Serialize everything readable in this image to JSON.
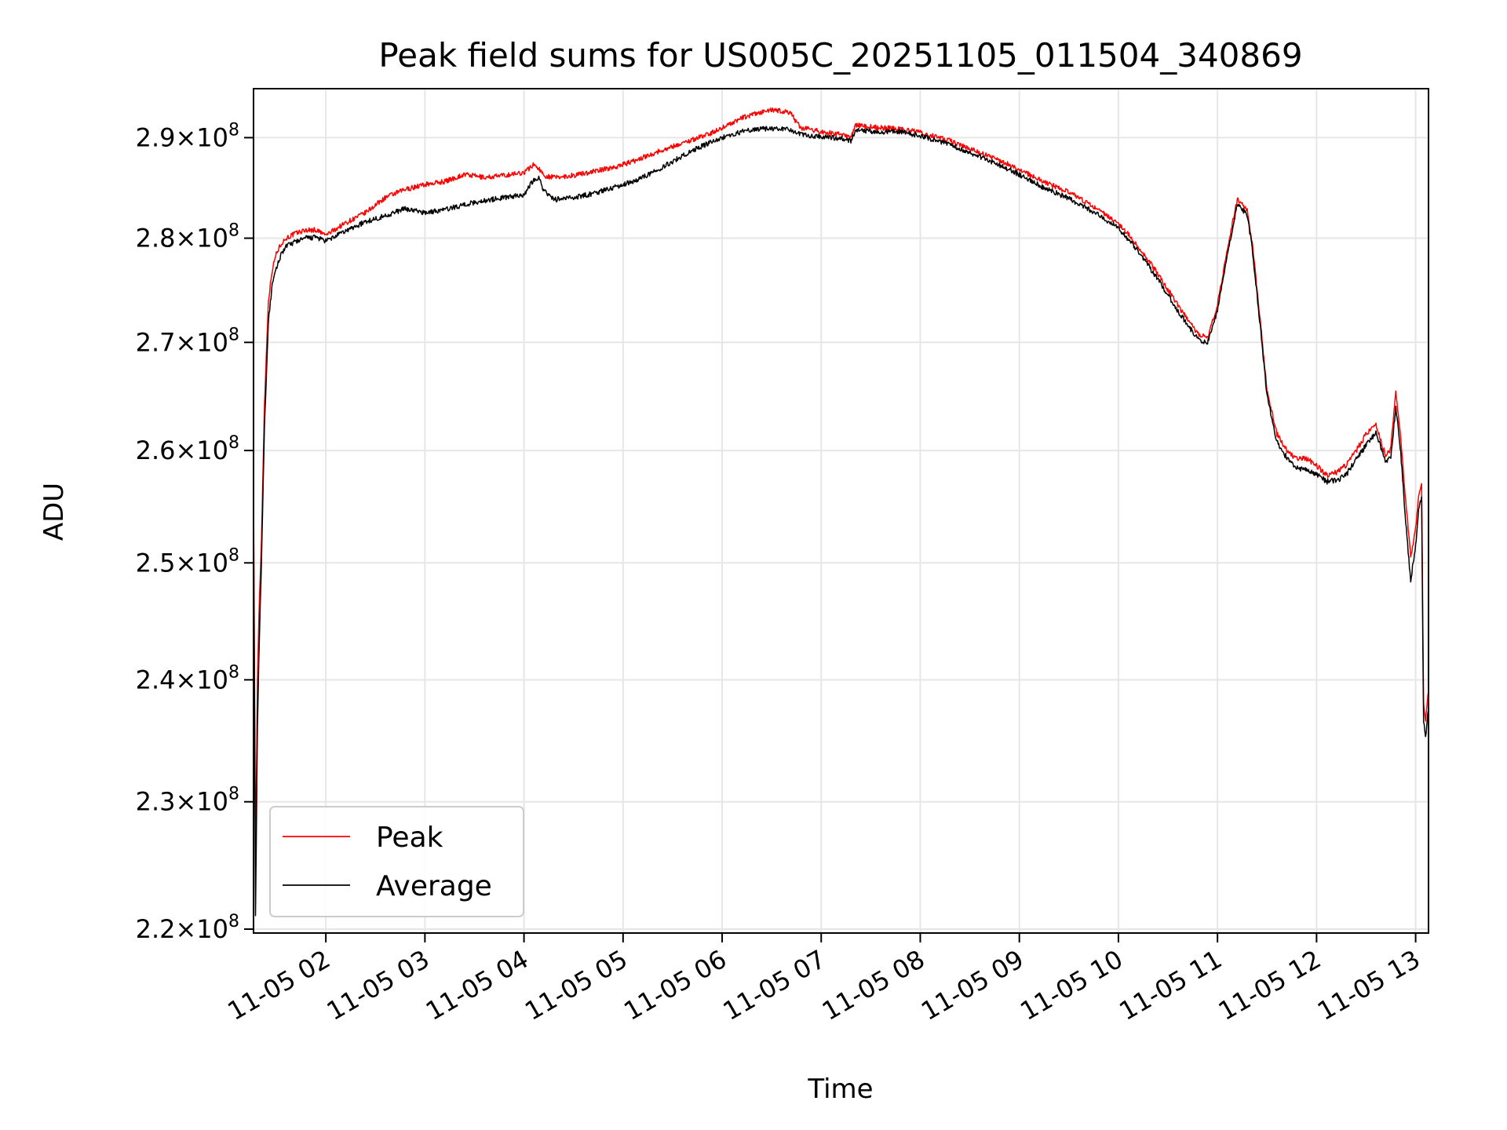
{
  "chart_data": {
    "type": "line",
    "title": "Peak field sums for US005C_20251105_011504_340869",
    "xlabel": "Time",
    "ylabel": "ADU",
    "x_unit": "hours since 11-05 00:00",
    "xlim": [
      1.27,
      13.13
    ],
    "ylim": [
      219700000,
      295000000
    ],
    "y_scale": "log",
    "grid": true,
    "legend_position": "lower-left",
    "x_ticks": [
      {
        "value": 2,
        "label": "11-05 02"
      },
      {
        "value": 3,
        "label": "11-05 03"
      },
      {
        "value": 4,
        "label": "11-05 04"
      },
      {
        "value": 5,
        "label": "11-05 05"
      },
      {
        "value": 6,
        "label": "11-05 06"
      },
      {
        "value": 7,
        "label": "11-05 07"
      },
      {
        "value": 8,
        "label": "11-05 08"
      },
      {
        "value": 9,
        "label": "11-05 09"
      },
      {
        "value": 10,
        "label": "11-05 10"
      },
      {
        "value": 11,
        "label": "11-05 11"
      },
      {
        "value": 12,
        "label": "11-05 12"
      },
      {
        "value": 13,
        "label": "11-05 13"
      }
    ],
    "y_ticks": [
      {
        "value": 220000000,
        "mantissa": "2.2",
        "base": "10",
        "exp": "8"
      },
      {
        "value": 230000000,
        "mantissa": "2.3",
        "base": "10",
        "exp": "8"
      },
      {
        "value": 240000000,
        "mantissa": "2.4",
        "base": "10",
        "exp": "8"
      },
      {
        "value": 250000000,
        "mantissa": "2.5",
        "base": "10",
        "exp": "8"
      },
      {
        "value": 260000000,
        "mantissa": "2.6",
        "base": "10",
        "exp": "8"
      },
      {
        "value": 270000000,
        "mantissa": "2.7",
        "base": "10",
        "exp": "8"
      },
      {
        "value": 280000000,
        "mantissa": "2.8",
        "base": "10",
        "exp": "8"
      },
      {
        "value": 290000000,
        "mantissa": "2.9",
        "base": "10",
        "exp": "8"
      }
    ],
    "series": [
      {
        "name": "Peak",
        "color": "#ff0000",
        "x": [
          1.27,
          1.29,
          1.31,
          1.33,
          1.35,
          1.38,
          1.42,
          1.46,
          1.5,
          1.55,
          1.6,
          1.7,
          1.8,
          1.9,
          2.0,
          2.2,
          2.4,
          2.6,
          2.8,
          3.0,
          3.2,
          3.4,
          3.6,
          3.8,
          4.0,
          4.1,
          4.15,
          4.2,
          4.3,
          4.5,
          4.7,
          4.9,
          5.1,
          5.3,
          5.5,
          5.7,
          5.9,
          6.0,
          6.1,
          6.2,
          6.3,
          6.4,
          6.5,
          6.6,
          6.7,
          6.75,
          6.8,
          7.0,
          7.2,
          7.3,
          7.35,
          7.4,
          7.6,
          7.8,
          8.0,
          8.3,
          8.6,
          8.9,
          9.2,
          9.5,
          9.8,
          10.0,
          10.2,
          10.4,
          10.6,
          10.8,
          10.9,
          11.0,
          11.1,
          11.2,
          11.3,
          11.35,
          11.4,
          11.5,
          11.6,
          11.7,
          11.8,
          11.9,
          12.0,
          12.1,
          12.2,
          12.3,
          12.4,
          12.5,
          12.6,
          12.65,
          12.7,
          12.75,
          12.8,
          12.85,
          12.9,
          12.95,
          13.0,
          13.03,
          13.06,
          13.08,
          13.1,
          13.13
        ],
        "y": [
          257000000,
          225000000,
          240000000,
          247000000,
          252000000,
          264000000,
          274000000,
          277000000,
          278500000,
          279500000,
          280000000,
          280500000,
          280800000,
          280800000,
          280300000,
          281500000,
          282500000,
          284000000,
          284800000,
          285300000,
          285600000,
          286300000,
          286000000,
          286200000,
          286500000,
          287300000,
          286900000,
          286200000,
          286000000,
          286200000,
          286600000,
          287000000,
          287600000,
          288400000,
          289100000,
          289800000,
          290500000,
          291000000,
          291500000,
          292000000,
          292300000,
          292600000,
          292800000,
          292700000,
          292500000,
          291500000,
          291000000,
          290600000,
          290300000,
          290000000,
          291300000,
          291200000,
          291000000,
          290900000,
          290500000,
          289700000,
          288500000,
          287300000,
          285800000,
          284500000,
          282800000,
          281500000,
          279200000,
          276500000,
          273500000,
          270800000,
          270500000,
          273500000,
          279000000,
          283800000,
          282800000,
          279500000,
          275000000,
          265500000,
          261500000,
          260000000,
          259200000,
          259300000,
          258600000,
          257800000,
          258000000,
          258700000,
          260000000,
          261500000,
          262300000,
          260800000,
          259500000,
          260200000,
          265500000,
          261000000,
          255500000,
          250500000,
          253000000,
          256000000,
          257000000,
          238000000,
          236500000,
          239000000
        ]
      },
      {
        "name": "Average",
        "color": "#000000",
        "x": [
          1.27,
          1.29,
          1.31,
          1.33,
          1.35,
          1.38,
          1.42,
          1.46,
          1.5,
          1.55,
          1.6,
          1.7,
          1.8,
          1.9,
          2.0,
          2.2,
          2.4,
          2.6,
          2.8,
          3.0,
          3.2,
          3.4,
          3.6,
          3.8,
          4.0,
          4.1,
          4.15,
          4.2,
          4.3,
          4.5,
          4.7,
          4.9,
          5.1,
          5.3,
          5.5,
          5.7,
          5.9,
          6.0,
          6.1,
          6.2,
          6.3,
          6.4,
          6.5,
          6.6,
          6.7,
          6.75,
          6.8,
          7.0,
          7.2,
          7.3,
          7.35,
          7.4,
          7.6,
          7.8,
          8.0,
          8.3,
          8.6,
          8.9,
          9.2,
          9.5,
          9.8,
          10.0,
          10.2,
          10.4,
          10.6,
          10.8,
          10.9,
          11.0,
          11.1,
          11.2,
          11.3,
          11.35,
          11.4,
          11.5,
          11.6,
          11.7,
          11.8,
          11.9,
          12.0,
          12.1,
          12.2,
          12.3,
          12.4,
          12.5,
          12.6,
          12.65,
          12.7,
          12.75,
          12.8,
          12.85,
          12.9,
          12.95,
          13.0,
          13.03,
          13.06,
          13.08,
          13.1,
          13.13
        ],
        "y": [
          255000000,
          221000000,
          236000000,
          244000000,
          250000000,
          262000000,
          272000000,
          275500000,
          277000000,
          278500000,
          279200000,
          279700000,
          280000000,
          280100000,
          279700000,
          280700000,
          281600000,
          282200000,
          282900000,
          282500000,
          282800000,
          283300000,
          283700000,
          284000000,
          284300000,
          285800000,
          286000000,
          284700000,
          283800000,
          284000000,
          284400000,
          285000000,
          285600000,
          286500000,
          287600000,
          288700000,
          289600000,
          290000000,
          290300000,
          290600000,
          290800000,
          290900000,
          290900000,
          290900000,
          290800000,
          290500000,
          290300000,
          290100000,
          289900000,
          289700000,
          290800000,
          290700000,
          290600000,
          290600000,
          290200000,
          289300000,
          288100000,
          286800000,
          285200000,
          283900000,
          282300000,
          281000000,
          278700000,
          276000000,
          273000000,
          270300000,
          270000000,
          273000000,
          278500000,
          283300000,
          282300000,
          279000000,
          274500000,
          265000000,
          260800000,
          259300000,
          258400000,
          258200000,
          257800000,
          257200000,
          257300000,
          257800000,
          259200000,
          260500000,
          261600000,
          260300000,
          258800000,
          259500000,
          264000000,
          259800000,
          253500000,
          248500000,
          251500000,
          254800000,
          255800000,
          236500000,
          235200000,
          237500000
        ]
      }
    ]
  }
}
